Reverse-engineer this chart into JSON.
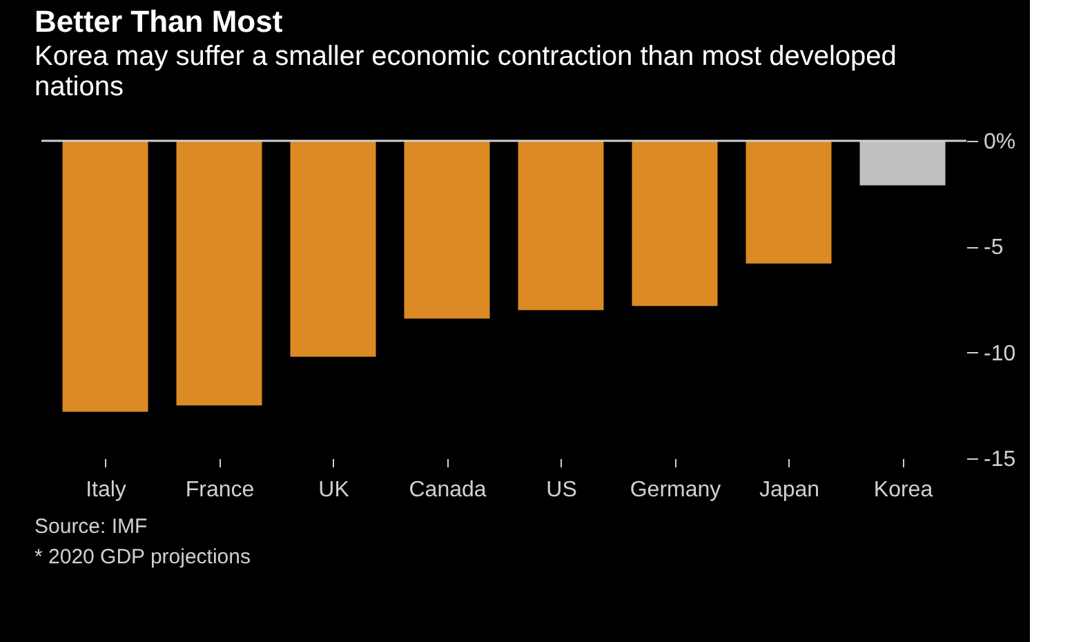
{
  "chart_data": {
    "type": "bar",
    "title": "Better Than Most",
    "subtitle": "Korea may suffer a smaller economic contraction than most developed nations",
    "categories": [
      "Italy",
      "France",
      "UK",
      "Canada",
      "US",
      "Germany",
      "Japan",
      "Korea"
    ],
    "values": [
      -12.8,
      -12.5,
      -10.2,
      -8.4,
      -8.0,
      -7.8,
      -5.8,
      -2.1
    ],
    "colors": [
      "#dc8a24",
      "#dc8a24",
      "#dc8a24",
      "#dc8a24",
      "#dc8a24",
      "#dc8a24",
      "#dc8a24",
      "#c0c0c0"
    ],
    "ylim": [
      -15,
      0
    ],
    "yticks": [
      {
        "value": 0,
        "label": "0%"
      },
      -5,
      -10,
      -15
    ],
    "grid": false,
    "annotations": [
      "Source: IMF",
      "* 2020 GDP projections"
    ]
  }
}
